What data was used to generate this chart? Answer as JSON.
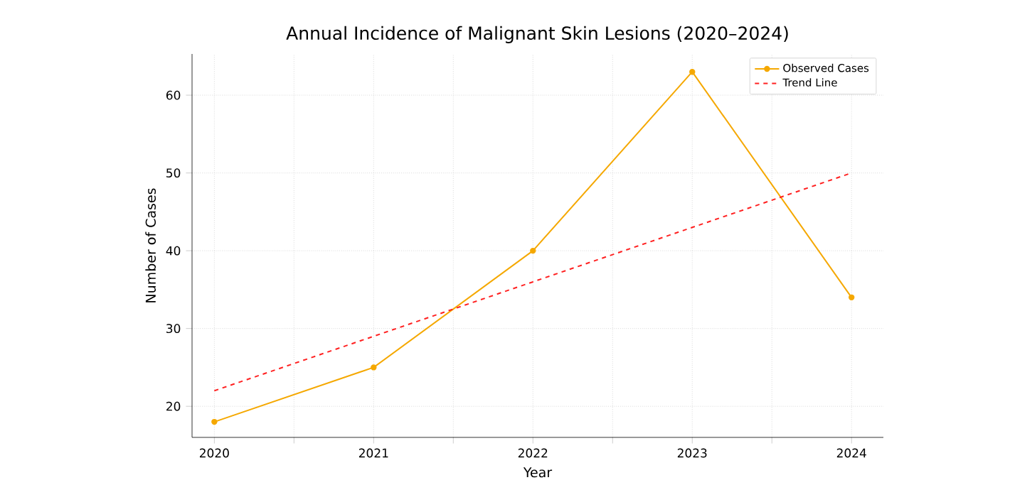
{
  "chart_data": {
    "type": "line",
    "title": "Annual Incidence of Malignant Skin Lesions (2020–2024)",
    "xlabel": "Year",
    "ylabel": "Number of Cases",
    "x": [
      2020,
      2021,
      2022,
      2023,
      2024
    ],
    "series": [
      {
        "name": "Observed Cases",
        "color": "#f5a800",
        "values": [
          18,
          25,
          40,
          63,
          34
        ],
        "marker": "circle",
        "line_style": "solid"
      },
      {
        "name": "Trend Line",
        "color": "#ff2020",
        "values": [
          22,
          29,
          36,
          43,
          50
        ],
        "marker": "none",
        "line_style": "dashed"
      }
    ],
    "xlim": [
      2019.86,
      2024.2
    ],
    "ylim": [
      16,
      65.3
    ],
    "xticks": [
      2020,
      {
        "value": 2020.5,
        "label": null
      },
      2021,
      {
        "value": 2021.5,
        "label": null
      },
      2022,
      {
        "value": 2022.5,
        "label": null
      },
      2023,
      {
        "value": 2023.5,
        "label": null
      },
      2024
    ],
    "yticks": [
      20,
      30,
      40,
      50,
      60
    ],
    "grid": true,
    "legend": "top right"
  }
}
